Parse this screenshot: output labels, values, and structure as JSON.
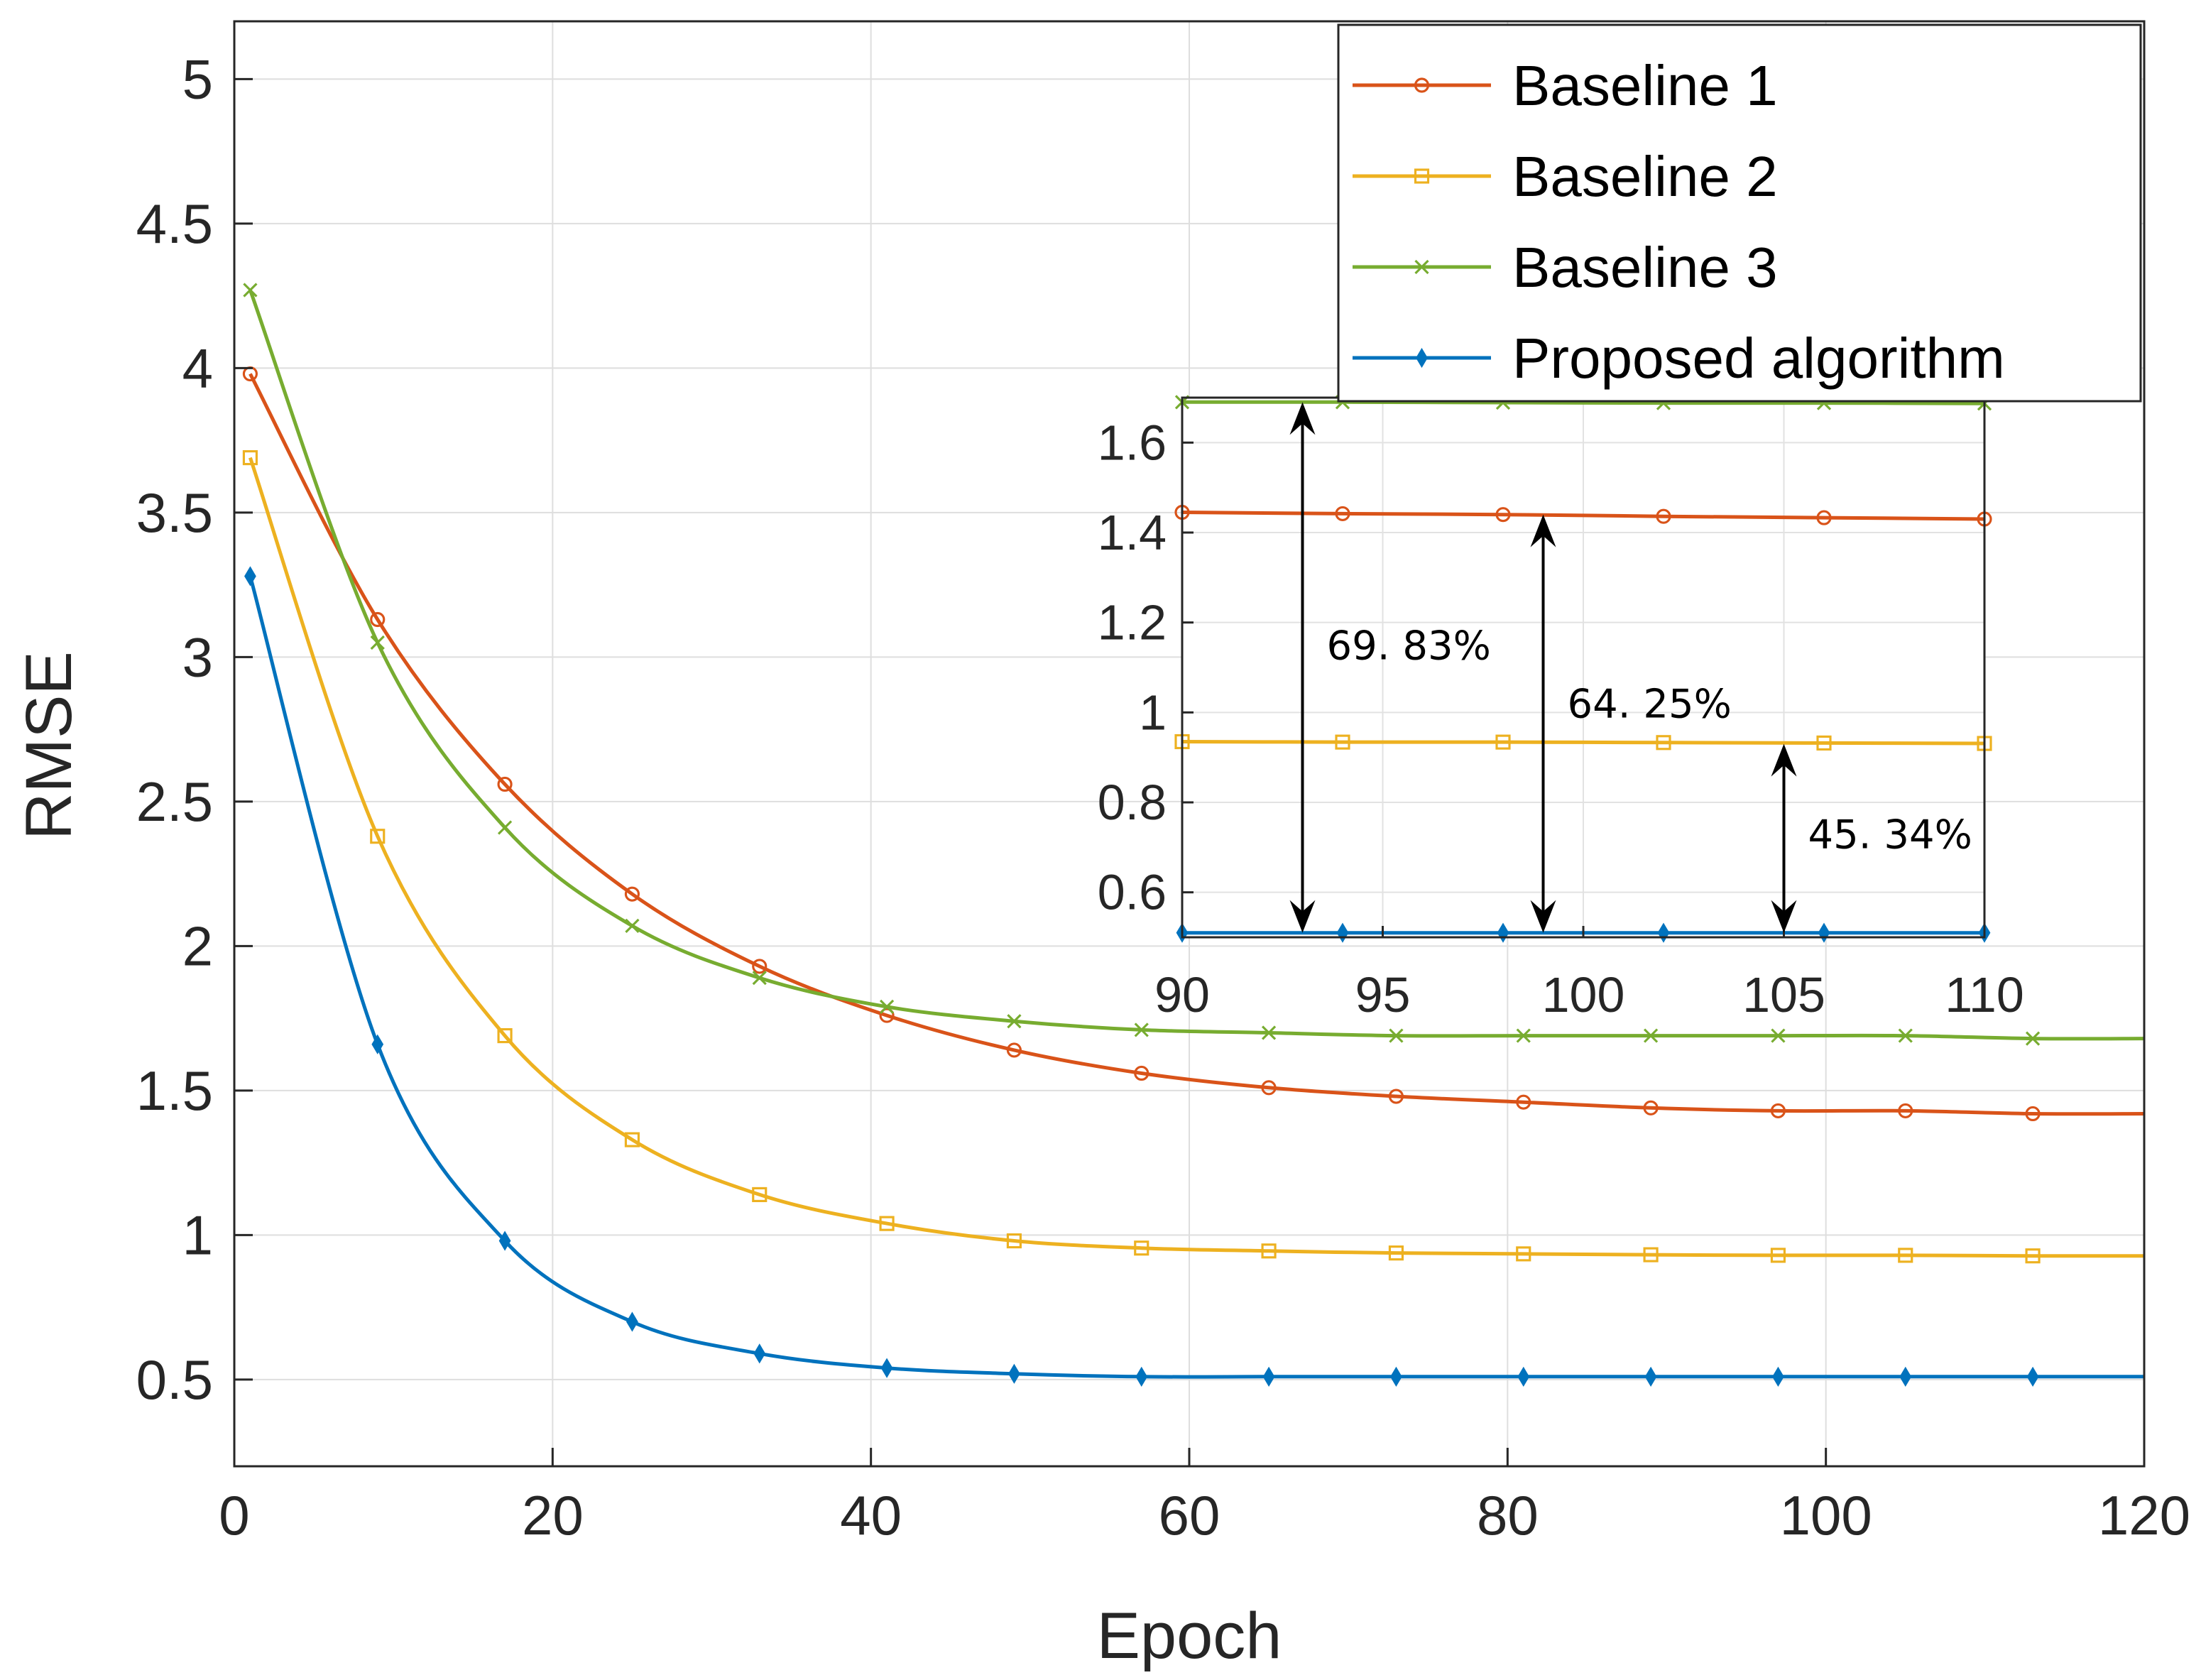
{
  "chart_data": {
    "type": "line",
    "xlabel": "Epoch",
    "ylabel": "RMSE",
    "xlim": [
      0,
      120
    ],
    "ylim": [
      0.2,
      5.2
    ],
    "grid": true,
    "legend_position": "top-right",
    "x_ticks": [
      "0",
      "20",
      "40",
      "60",
      "80",
      "100",
      "120"
    ],
    "y_ticks": [
      "0.5",
      "1",
      "1.5",
      "2",
      "2.5",
      "3",
      "3.5",
      "4",
      "4.5",
      "5"
    ],
    "series": [
      {
        "name": "Baseline 1",
        "color": "#D95319",
        "marker": "circle",
        "x": [
          1,
          9,
          17,
          25,
          33,
          41,
          49,
          57,
          65,
          73,
          81,
          89,
          97,
          105,
          113,
          120
        ],
        "y": [
          3.98,
          3.13,
          2.56,
          2.18,
          1.93,
          1.76,
          1.64,
          1.56,
          1.51,
          1.48,
          1.46,
          1.44,
          1.43,
          1.43,
          1.42,
          1.42
        ]
      },
      {
        "name": "Baseline 2",
        "color": "#EDB120",
        "marker": "square",
        "x": [
          1,
          9,
          17,
          25,
          33,
          41,
          49,
          57,
          65,
          73,
          81,
          89,
          97,
          105,
          113,
          120
        ],
        "y": [
          3.69,
          2.38,
          1.69,
          1.33,
          1.14,
          1.04,
          0.98,
          0.955,
          0.945,
          0.938,
          0.935,
          0.932,
          0.93,
          0.93,
          0.928,
          0.928
        ]
      },
      {
        "name": "Baseline 3",
        "color": "#77AC30",
        "marker": "x",
        "x": [
          1,
          9,
          17,
          25,
          33,
          41,
          49,
          57,
          65,
          73,
          81,
          89,
          97,
          105,
          113,
          120
        ],
        "y": [
          4.27,
          3.05,
          2.41,
          2.07,
          1.89,
          1.79,
          1.74,
          1.71,
          1.7,
          1.69,
          1.69,
          1.69,
          1.69,
          1.69,
          1.68,
          1.68
        ]
      },
      {
        "name": "Proposed algorithm",
        "color": "#0072BD",
        "marker": "diamond",
        "x": [
          1,
          9,
          17,
          25,
          33,
          41,
          49,
          57,
          65,
          73,
          81,
          89,
          97,
          105,
          113,
          120
        ],
        "y": [
          3.28,
          1.66,
          0.98,
          0.7,
          0.59,
          0.54,
          0.52,
          0.51,
          0.51,
          0.51,
          0.51,
          0.51,
          0.51,
          0.51,
          0.51,
          0.51
        ]
      }
    ],
    "inset": {
      "xlim": [
        90,
        110
      ],
      "ylim": [
        0.5,
        1.7
      ],
      "x_ticks": [
        "90",
        "95",
        "100",
        "105",
        "110"
      ],
      "y_ticks": [
        "0.6",
        "0.8",
        "1",
        "1.2",
        "1.4",
        "1.6"
      ],
      "series": [
        {
          "name": "Baseline 1",
          "x": [
            90,
            94,
            98,
            102,
            106,
            110
          ],
          "y": [
            1.445,
            1.442,
            1.44,
            1.436,
            1.433,
            1.43
          ]
        },
        {
          "name": "Baseline 2",
          "x": [
            90,
            94,
            98,
            102,
            106,
            110
          ],
          "y": [
            0.935,
            0.934,
            0.934,
            0.933,
            0.932,
            0.931
          ]
        },
        {
          "name": "Baseline 3",
          "x": [
            90,
            94,
            98,
            102,
            106,
            110
          ],
          "y": [
            1.69,
            1.69,
            1.689,
            1.688,
            1.688,
            1.687
          ]
        },
        {
          "name": "Proposed algorithm",
          "x": [
            90,
            94,
            98,
            102,
            106,
            110
          ],
          "y": [
            0.51,
            0.51,
            0.51,
            0.51,
            0.51,
            0.51
          ]
        }
      ],
      "annotations": [
        {
          "text": "69. 83%",
          "x": 93,
          "y_from": 0.51,
          "y_to": 1.69,
          "label_y": 1.15
        },
        {
          "text": "64. 25%",
          "x": 99,
          "y_from": 0.51,
          "y_to": 1.44,
          "label_y": 1.02
        },
        {
          "text": "45. 34%",
          "x": 105,
          "y_from": 0.51,
          "y_to": 0.93,
          "label_y": 0.73
        }
      ]
    }
  }
}
